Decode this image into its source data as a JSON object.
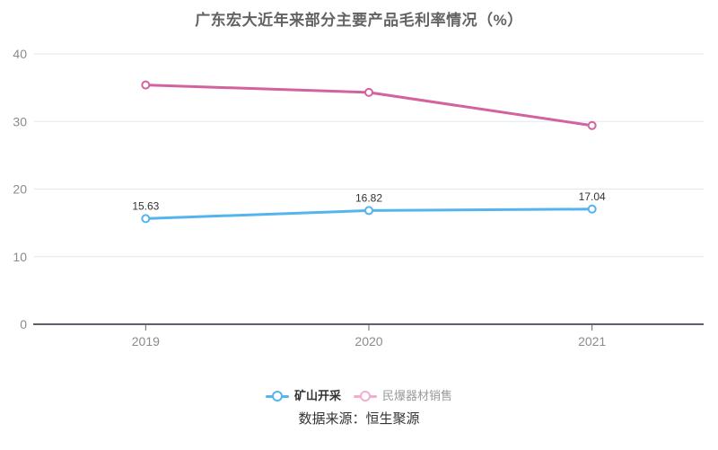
{
  "title": "广东宏大近年来部分主要产品毛利率情况（%）",
  "source_note": "数据来源：恒生聚源",
  "colors": {
    "background": "#ffffff",
    "title": "#636363",
    "gridline": "#e2e7f2",
    "axis_line": "#5c6068",
    "tick": "#666666",
    "axis_label": "#8b8b8b",
    "data_label": "#333333",
    "series_blue": "#55b4ee",
    "series_pink": "#d2639e",
    "legend_pink_faded": "#f2aed0"
  },
  "chart_data": {
    "type": "line",
    "title": "广东宏大近年来部分主要产品毛利率情况（%）",
    "categories": [
      "2019",
      "2020",
      "2021"
    ],
    "series": [
      {
        "name": "矿山开采",
        "values": [
          15.63,
          16.82,
          17.04
        ],
        "point_labels": [
          "15.63",
          "16.82",
          "17.04"
        ],
        "color": "#55b4ee",
        "show_point_labels": true
      },
      {
        "name": "民爆器材销售",
        "values": [
          35.4,
          34.3,
          29.4
        ],
        "point_labels": [],
        "color": "#d2639e",
        "show_point_labels": false
      }
    ],
    "xlabel": "",
    "ylabel": "",
    "ylim": [
      0,
      40
    ],
    "y_ticks": [
      0,
      10,
      20,
      30,
      40
    ],
    "grid": "horizontal-only",
    "legend_position": "bottom"
  },
  "legend": {
    "items": [
      {
        "label": "矿山开采",
        "marker_color": "#55b4ee",
        "label_color": "#333333",
        "bold": true
      },
      {
        "label": "民爆器材销售",
        "marker_color": "#f2aed0",
        "label_color": "#999999",
        "bold": false
      }
    ]
  }
}
